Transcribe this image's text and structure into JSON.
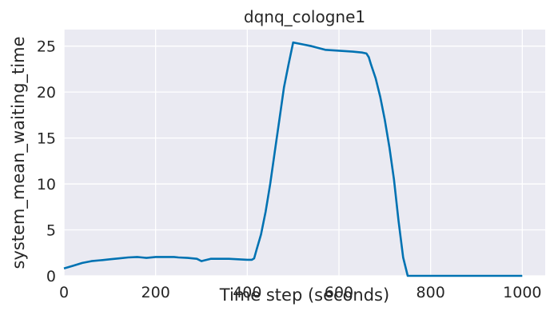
{
  "chart_data": {
    "type": "line",
    "title": "dqnq_cologne1",
    "xlabel": "Time step (seconds)",
    "ylabel": "system_mean_waiting_time",
    "xlim": [
      0,
      1050
    ],
    "ylim": [
      0,
      26.8
    ],
    "xticks": [
      0,
      200,
      400,
      600,
      800,
      1000
    ],
    "yticks": [
      0,
      5,
      10,
      15,
      20,
      25
    ],
    "grid": true,
    "series": [
      {
        "color": "#0072b2",
        "x": [
          0,
          20,
          40,
          60,
          80,
          100,
          120,
          140,
          160,
          170,
          180,
          200,
          220,
          240,
          250,
          270,
          290,
          300,
          320,
          340,
          360,
          380,
          400,
          410,
          415,
          420,
          430,
          440,
          450,
          460,
          470,
          480,
          490,
          500,
          520,
          540,
          555,
          570,
          600,
          630,
          650,
          660,
          665,
          670,
          680,
          690,
          700,
          710,
          720,
          730,
          740,
          750,
          760,
          780,
          800,
          850,
          900,
          950,
          1000
        ],
        "y": [
          0.8,
          1.1,
          1.4,
          1.6,
          1.7,
          1.8,
          1.9,
          2.0,
          2.05,
          2.0,
          1.95,
          2.05,
          2.05,
          2.05,
          2.0,
          1.95,
          1.85,
          1.6,
          1.85,
          1.85,
          1.85,
          1.8,
          1.75,
          1.75,
          1.9,
          2.8,
          4.5,
          7.0,
          10.0,
          13.5,
          17.0,
          20.5,
          23.0,
          25.4,
          25.2,
          25.0,
          24.8,
          24.6,
          24.5,
          24.4,
          24.3,
          24.2,
          23.8,
          23.0,
          21.5,
          19.5,
          17.0,
          14.0,
          10.5,
          6.0,
          2.0,
          0.0,
          0.0,
          0.0,
          0.0,
          0.0,
          0.0,
          0.0,
          0.0
        ]
      }
    ]
  }
}
